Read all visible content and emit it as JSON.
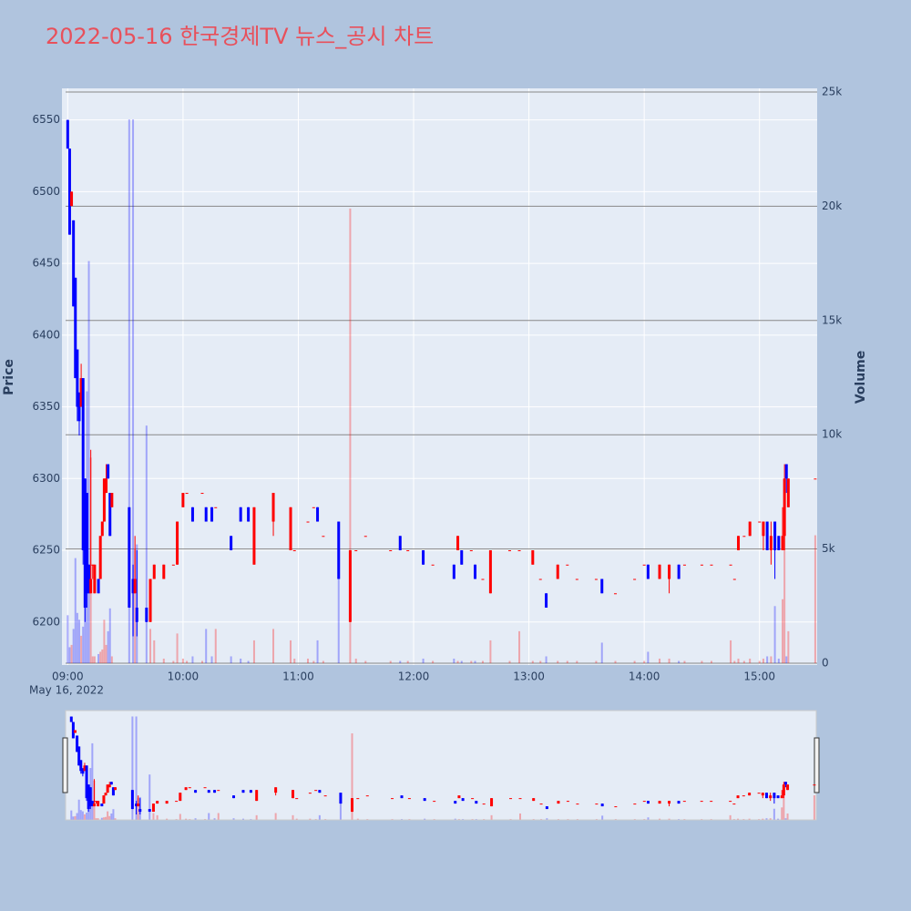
{
  "chart_data": {
    "type": "candlestick",
    "title": "2022-05-16 한국경제TV 뉴스_공시 차트",
    "y_title": "Price",
    "y2_title": "Volume",
    "x_date_label": "May 16, 2022",
    "increasing_color": "#ff0000",
    "decreasing_color": "#0000ff",
    "title_color": "#e8505b",
    "xlim": [
      "08:57",
      "15:30"
    ],
    "xticks": [
      "09:00",
      "10:00",
      "11:00",
      "12:00",
      "13:00",
      "14:00",
      "15:00"
    ],
    "ylim": [
      6170,
      6572
    ],
    "yticks": [
      6200,
      6250,
      6300,
      6350,
      6400,
      6450,
      6500,
      6550
    ],
    "y2lim": [
      -80,
      25160
    ],
    "y2ticks": [
      {
        "value": 0,
        "label": "0"
      },
      {
        "value": 5000,
        "label": "5k"
      },
      {
        "value": 10000,
        "label": "10k"
      },
      {
        "value": 15000,
        "label": "15k"
      },
      {
        "value": 20000,
        "label": "20k"
      },
      {
        "value": 25000,
        "label": "25k"
      }
    ],
    "grid": true,
    "range_slider": true,
    "x": [
      "09:00",
      "09:01",
      "09:02",
      "09:03",
      "09:04",
      "09:05",
      "09:06",
      "09:07",
      "09:08",
      "09:09",
      "09:10",
      "09:11",
      "09:12",
      "09:13",
      "09:14",
      "09:16",
      "09:17",
      "09:18",
      "09:19",
      "09:20",
      "09:21",
      "09:22",
      "09:23",
      "09:32",
      "09:34",
      "09:35",
      "09:36",
      "09:41",
      "09:43",
      "09:45",
      "09:50",
      "09:55",
      "09:57",
      "10:00",
      "10:02",
      "10:05",
      "10:10",
      "10:12",
      "10:15",
      "10:17",
      "10:25",
      "10:30",
      "10:34",
      "10:37",
      "10:47",
      "10:56",
      "10:58",
      "11:05",
      "11:08",
      "11:10",
      "11:13",
      "11:21",
      "11:27",
      "11:30",
      "11:35",
      "11:48",
      "11:53",
      "11:57",
      "12:05",
      "12:10",
      "12:21",
      "12:23",
      "12:25",
      "12:30",
      "12:32",
      "12:36",
      "12:40",
      "12:50",
      "12:55",
      "13:02",
      "13:06",
      "13:09",
      "13:15",
      "13:20",
      "13:25",
      "13:35",
      "13:38",
      "13:45",
      "13:55",
      "14:00",
      "14:02",
      "14:08",
      "14:13",
      "14:18",
      "14:21",
      "14:30",
      "14:35",
      "14:45",
      "14:47",
      "14:49",
      "14:52",
      "14:55",
      "15:00",
      "15:02",
      "15:04",
      "15:06",
      "15:08",
      "15:10",
      "15:12",
      "15:13",
      "15:14",
      "15:15",
      "15:29"
    ],
    "open": [
      6550,
      6530,
      6490,
      6480,
      6440,
      6390,
      6360,
      6350,
      6370,
      6300,
      6290,
      6240,
      6220,
      6240,
      6220,
      6230,
      6230,
      6260,
      6270,
      6290,
      6310,
      6290,
      6280,
      6280,
      6230,
      6220,
      6210,
      6210,
      6200,
      6230,
      6230,
      6240,
      6240,
      6280,
      6290,
      6280,
      6290,
      6280,
      6280,
      6280,
      6260,
      6280,
      6280,
      6240,
      6270,
      6250,
      6250,
      6270,
      6280,
      6280,
      6260,
      6270,
      6200,
      6250,
      6260,
      6250,
      6260,
      6250,
      6250,
      6240,
      6240,
      6250,
      6250,
      6250,
      6240,
      6230,
      6220,
      6250,
      6250,
      6240,
      6230,
      6220,
      6230,
      6240,
      6230,
      6230,
      6230,
      6220,
      6230,
      6240,
      6240,
      6230,
      6230,
      6240,
      6240,
      6240,
      6240,
      6240,
      6230,
      6250,
      6260,
      6260,
      6270,
      6260,
      6270,
      6250,
      6270,
      6260,
      6250,
      6260,
      6310,
      6280,
      6300
    ],
    "high": [
      6550,
      6530,
      6500,
      6480,
      6440,
      6390,
      6360,
      6380,
      6370,
      6300,
      6290,
      6240,
      6320,
      6240,
      6240,
      6230,
      6260,
      6270,
      6300,
      6310,
      6310,
      6290,
      6290,
      6280,
      6240,
      6260,
      6250,
      6210,
      6230,
      6240,
      6240,
      6240,
      6270,
      6290,
      6290,
      6280,
      6290,
      6280,
      6280,
      6280,
      6260,
      6280,
      6280,
      6280,
      6290,
      6280,
      6250,
      6270,
      6280,
      6280,
      6260,
      6270,
      6250,
      6250,
      6260,
      6250,
      6260,
      6250,
      6250,
      6240,
      6240,
      6260,
      6250,
      6250,
      6240,
      6230,
      6250,
      6250,
      6250,
      6250,
      6230,
      6220,
      6240,
      6240,
      6230,
      6230,
      6230,
      6220,
      6230,
      6240,
      6240,
      6240,
      6240,
      6240,
      6240,
      6240,
      6240,
      6240,
      6230,
      6260,
      6260,
      6270,
      6270,
      6270,
      6270,
      6270,
      6270,
      6260,
      6280,
      6310,
      6310,
      6300,
      6300
    ],
    "low": [
      6530,
      6470,
      6490,
      6420,
      6370,
      6340,
      6330,
      6350,
      6240,
      6200,
      6210,
      6220,
      6220,
      6230,
      6220,
      6220,
      6230,
      6260,
      6270,
      6290,
      6300,
      6260,
      6280,
      6210,
      6190,
      6220,
      6190,
      6200,
      6200,
      6230,
      6230,
      6240,
      6240,
      6280,
      6290,
      6270,
      6290,
      6270,
      6270,
      6280,
      6250,
      6270,
      6270,
      6240,
      6260,
      6250,
      6250,
      6270,
      6280,
      6270,
      6260,
      6230,
      6200,
      6250,
      6260,
      6250,
      6250,
      6250,
      6240,
      6240,
      6230,
      6250,
      6240,
      6250,
      6230,
      6230,
      6220,
      6250,
      6250,
      6240,
      6230,
      6210,
      6230,
      6240,
      6230,
      6230,
      6220,
      6220,
      6230,
      6240,
      6230,
      6230,
      6220,
      6230,
      6240,
      6240,
      6240,
      6240,
      6230,
      6250,
      6260,
      6260,
      6270,
      6250,
      6250,
      6240,
      6230,
      6250,
      6250,
      6250,
      6290,
      6280,
      6300
    ],
    "close": [
      6530,
      6470,
      6500,
      6420,
      6370,
      6350,
      6340,
      6370,
      6250,
      6210,
      6220,
      6220,
      6230,
      6240,
      6240,
      6220,
      6260,
      6270,
      6300,
      6300,
      6300,
      6260,
      6290,
      6210,
      6220,
      6230,
      6200,
      6200,
      6230,
      6240,
      6240,
      6240,
      6270,
      6290,
      6290,
      6270,
      6290,
      6270,
      6270,
      6280,
      6250,
      6270,
      6270,
      6280,
      6290,
      6280,
      6250,
      6270,
      6280,
      6270,
      6260,
      6230,
      6250,
      6250,
      6260,
      6250,
      6250,
      6250,
      6240,
      6240,
      6230,
      6260,
      6240,
      6250,
      6230,
      6230,
      6250,
      6250,
      6250,
      6250,
      6230,
      6210,
      6240,
      6240,
      6230,
      6230,
      6220,
      6220,
      6230,
      6240,
      6230,
      6240,
      6240,
      6230,
      6240,
      6240,
      6240,
      6240,
      6230,
      6260,
      6260,
      6270,
      6270,
      6270,
      6250,
      6260,
      6250,
      6250,
      6260,
      6300,
      6300,
      6300,
      6300
    ],
    "volume": [
      2100,
      700,
      800,
      1500,
      4600,
      2200,
      1900,
      1200,
      1600,
      3000,
      11900,
      17600,
      9000,
      300,
      300,
      400,
      500,
      600,
      1900,
      800,
      1400,
      2400,
      300,
      23800,
      23800,
      5000,
      5200,
      10400,
      1500,
      1000,
      200,
      100,
      1300,
      200,
      100,
      300,
      100,
      1500,
      300,
      1500,
      300,
      200,
      100,
      1000,
      1500,
      1000,
      200,
      200,
      100,
      1000,
      100,
      5900,
      19900,
      200,
      100,
      100,
      100,
      100,
      200,
      100,
      200,
      100,
      100,
      100,
      100,
      100,
      1000,
      100,
      1400,
      100,
      100,
      300,
      100,
      100,
      100,
      100,
      900,
      100,
      100,
      100,
      500,
      200,
      200,
      100,
      100,
      100,
      100,
      1000,
      100,
      200,
      100,
      200,
      100,
      200,
      300,
      300,
      2500,
      200,
      2800,
      5700,
      300,
      1400,
      5600
    ]
  }
}
